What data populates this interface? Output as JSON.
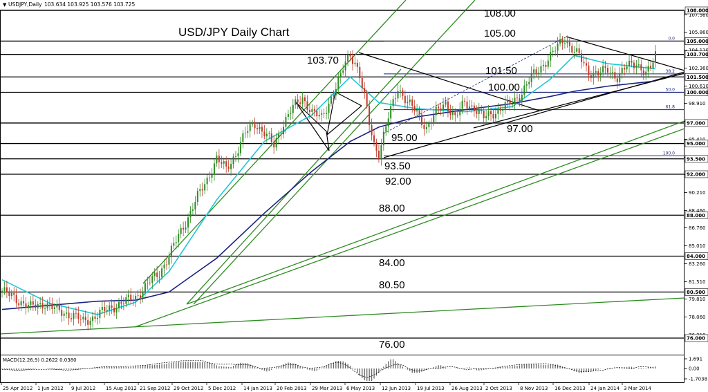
{
  "header": {
    "symbol": "USDJPY,Daily",
    "ohlc": "103.634 103.925 103.576 103.725"
  },
  "chart_data": {
    "type": "candlestick",
    "title": "USD/JPY Daily Chart",
    "ylim": [
      75.0,
      108.6
    ],
    "price_axis_ticks": [
      "107.560",
      "105.860",
      "104.110",
      "102.360",
      "100.610",
      "98.910",
      "97.160",
      "95.410",
      "93.660",
      "91.960",
      "90.210",
      "88.460",
      "86.760",
      "85.010",
      "83.260",
      "81.510",
      "79.810",
      "78.060",
      "76.310"
    ],
    "highlighted_levels": [
      "108.000",
      "105.000",
      "103.700",
      "101.500",
      "100.000",
      "97.000",
      "95.000",
      "93.500",
      "92.000",
      "88.000",
      "84.000",
      "80.500",
      "76.000"
    ],
    "level_labels": [
      {
        "text": "108.00",
        "value": 108.0
      },
      {
        "text": "105.00",
        "value": 105.0
      },
      {
        "text": "103.70",
        "value": 103.7
      },
      {
        "text": "101.50",
        "value": 101.5
      },
      {
        "text": "100.00",
        "value": 100.0
      },
      {
        "text": "97.00",
        "value": 97.0
      },
      {
        "text": "95.00",
        "value": 95.0
      },
      {
        "text": "93.50",
        "value": 93.5
      },
      {
        "text": "92.00",
        "value": 92.0
      },
      {
        "text": "88.00",
        "value": 88.0
      },
      {
        "text": "84.00",
        "value": 84.0
      },
      {
        "text": "80.50",
        "value": 80.5
      },
      {
        "text": "76.00",
        "value": 76.0
      }
    ],
    "fib_labels": [
      "0.0",
      "38.2",
      "50.0",
      "61.8",
      "100.0"
    ],
    "x_labels": [
      "25 Apr 2012",
      "1 Jun 2012",
      "9 Jul 2012",
      "15 Aug 2012",
      "21 Sep 2012",
      "29 Oct 2012",
      "5 Dec 2012",
      "14 Jan 2013",
      "20 Feb 2013",
      "29 Mar 2013",
      "6 May 2013",
      "12 Jun 2013",
      "19 Jul 2013",
      "26 Aug 2013",
      "2 Oct 2013",
      "8 Nov 2013",
      "16 Dec 2013",
      "24 Jan 2014",
      "3 Mar 2014"
    ],
    "price_path": [
      [
        0,
        80.6
      ],
      [
        6,
        79.8
      ],
      [
        12,
        79.0
      ],
      [
        18,
        79.4
      ],
      [
        24,
        78.6
      ],
      [
        30,
        78.2
      ],
      [
        34,
        77.6
      ],
      [
        38,
        78.0
      ],
      [
        44,
        78.8
      ],
      [
        50,
        79.4
      ],
      [
        56,
        80.0
      ],
      [
        62,
        81.5
      ],
      [
        66,
        82.4
      ],
      [
        70,
        84.0
      ],
      [
        74,
        86.0
      ],
      [
        78,
        87.8
      ],
      [
        82,
        89.8
      ],
      [
        86,
        91.5
      ],
      [
        90,
        93.5
      ],
      [
        94,
        92.5
      ],
      [
        98,
        94.0
      ],
      [
        102,
        96.0
      ],
      [
        106,
        97.0
      ],
      [
        110,
        96.0
      ],
      [
        114,
        94.8
      ],
      [
        118,
        97.0
      ],
      [
        122,
        98.5
      ],
      [
        126,
        99.5
      ],
      [
        130,
        98.0
      ],
      [
        134,
        97.5
      ],
      [
        138,
        99.5
      ],
      [
        142,
        101.5
      ],
      [
        144,
        103.0
      ],
      [
        146,
        103.7
      ],
      [
        148,
        103.0
      ],
      [
        150,
        101.5
      ],
      [
        152,
        99.5
      ],
      [
        154,
        97.0
      ],
      [
        156,
        95.0
      ],
      [
        158,
        94.0
      ],
      [
        162,
        97.5
      ],
      [
        166,
        100.5
      ],
      [
        170,
        99.0
      ],
      [
        174,
        98.0
      ],
      [
        178,
        96.5
      ],
      [
        182,
        98.0
      ],
      [
        186,
        99.0
      ],
      [
        190,
        97.5
      ],
      [
        194,
        99.0
      ],
      [
        198,
        98.5
      ],
      [
        202,
        97.5
      ],
      [
        206,
        98.0
      ],
      [
        210,
        98.5
      ],
      [
        214,
        99.0
      ],
      [
        218,
        100.0
      ],
      [
        222,
        101.5
      ],
      [
        226,
        102.5
      ],
      [
        230,
        103.5
      ],
      [
        234,
        104.8
      ],
      [
        236,
        105.3
      ],
      [
        238,
        104.5
      ],
      [
        242,
        103.5
      ],
      [
        246,
        102.0
      ],
      [
        250,
        101.8
      ],
      [
        254,
        102.2
      ],
      [
        258,
        101.5
      ],
      [
        262,
        102.5
      ],
      [
        266,
        102.9
      ],
      [
        270,
        101.8
      ],
      [
        272,
        102.3
      ],
      [
        274,
        103.7
      ]
    ],
    "series": [
      {
        "name": "",
        "values": [
          [
            0,
            81.7
          ],
          [
            20,
            79.4
          ],
          [
            40,
            78.3
          ],
          [
            56,
            79.5
          ],
          [
            70,
            82.5
          ],
          [
            90,
            89.5
          ],
          [
            110,
            95.2
          ],
          [
            130,
            97.8
          ],
          [
            146,
            101.5
          ],
          [
            158,
            99.0
          ],
          [
            174,
            98.4
          ],
          [
            194,
            98.1
          ],
          [
            214,
            98.6
          ],
          [
            230,
            101.3
          ],
          [
            240,
            103.6
          ],
          [
            254,
            102.8
          ],
          [
            274,
            102.3
          ]
        ]
      },
      {
        "name": "",
        "values": [
          [
            0,
            78.8
          ],
          [
            20,
            79.2
          ],
          [
            40,
            79.6
          ],
          [
            56,
            79.7
          ],
          [
            70,
            80.5
          ],
          [
            90,
            83.8
          ],
          [
            110,
            88.2
          ],
          [
            130,
            92.3
          ],
          [
            146,
            95.2
          ],
          [
            158,
            96.6
          ],
          [
            174,
            97.6
          ],
          [
            194,
            98.3
          ],
          [
            214,
            98.9
          ],
          [
            230,
            99.6
          ],
          [
            240,
            100.1
          ],
          [
            254,
            100.6
          ],
          [
            274,
            101.1
          ]
        ]
      }
    ],
    "macd": {
      "label": "MACD(12,26,9) 0.2622 0.0380",
      "ticks": [
        "1.691",
        "0.00",
        "-1.7038"
      ]
    }
  }
}
